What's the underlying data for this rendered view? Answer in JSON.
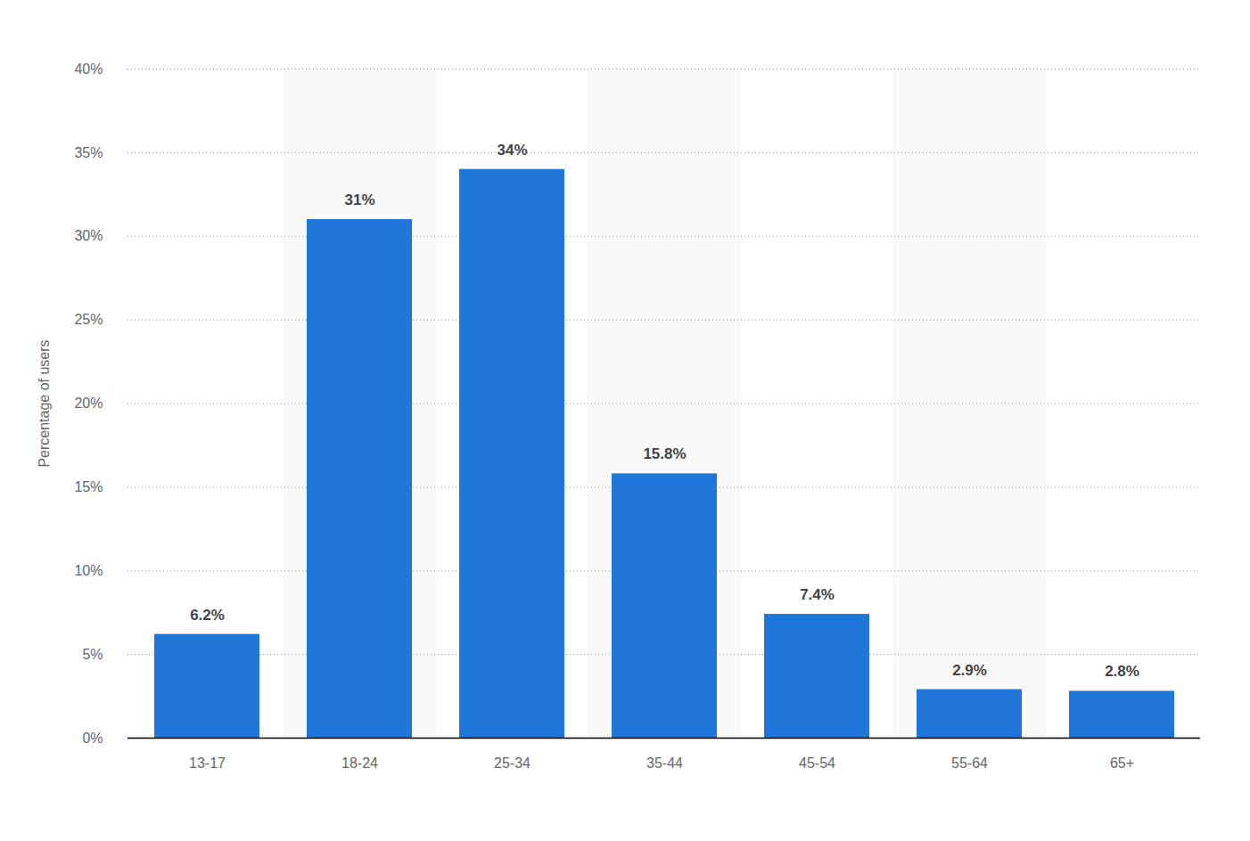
{
  "chart_data": {
    "type": "bar",
    "y_label": "Percentage of users",
    "categories": [
      "13-17",
      "18-24",
      "25-34",
      "35-44",
      "45-54",
      "55-64",
      "65+"
    ],
    "values": [
      6.2,
      31,
      34,
      15.8,
      7.4,
      2.9,
      2.8
    ],
    "value_labels": [
      "6.2%",
      "31%",
      "34%",
      "15.8%",
      "7.4%",
      "2.9%",
      "2.8%"
    ],
    "color": "#2077d9",
    "ylim": [
      0,
      40
    ],
    "yticks": [
      {
        "value": 0,
        "label": "0%"
      },
      {
        "value": 5,
        "label": "5%"
      },
      {
        "value": 10,
        "label": "10%"
      },
      {
        "value": 15,
        "label": "15%"
      },
      {
        "value": 20,
        "label": "20%"
      },
      {
        "value": 25,
        "label": "25%"
      },
      {
        "value": 30,
        "label": "30%"
      },
      {
        "value": 35,
        "label": "35%"
      },
      {
        "value": 40,
        "label": "40%"
      }
    ],
    "grid": true,
    "data_labels": true
  }
}
